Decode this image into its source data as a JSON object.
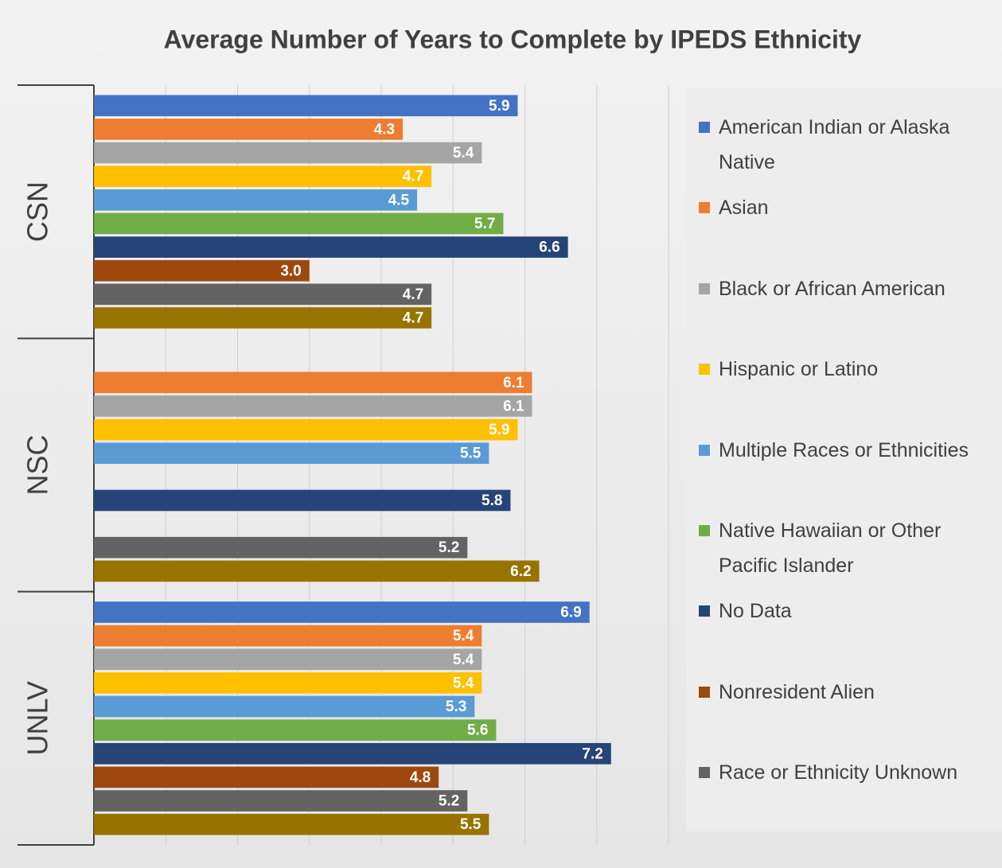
{
  "chart_data": {
    "type": "bar",
    "orientation": "horizontal",
    "title": "Average Number of Years to Complete by IPEDS Ethnicity",
    "categories": [
      "CSN",
      "NSC",
      "UNLV"
    ],
    "series": [
      {
        "name": "American Indian or Alaska Native",
        "color": "#4472c4",
        "values": [
          5.9,
          null,
          6.9
        ]
      },
      {
        "name": "Asian",
        "color": "#ed7d31",
        "values": [
          4.3,
          6.1,
          5.4
        ]
      },
      {
        "name": "Black or African American",
        "color": "#a5a5a5",
        "values": [
          5.4,
          6.1,
          5.4
        ]
      },
      {
        "name": "Hispanic or Latino",
        "color": "#ffc000",
        "values": [
          4.7,
          5.9,
          5.4
        ]
      },
      {
        "name": "Multiple Races or Ethnicities",
        "color": "#5b9bd5",
        "values": [
          4.5,
          5.5,
          5.3
        ]
      },
      {
        "name": "Native Hawaiian or Other Pacific Islander",
        "color": "#70ad47",
        "values": [
          5.7,
          null,
          5.6
        ]
      },
      {
        "name": "No Data",
        "color": "#264478",
        "values": [
          6.6,
          5.8,
          7.2
        ]
      },
      {
        "name": "Nonresident Alien",
        "color": "#9e480e",
        "values": [
          3.0,
          null,
          4.8
        ],
        "value_labels": [
          "3.0",
          null,
          "4.8"
        ]
      },
      {
        "name": "Race or Ethnicity Unknown",
        "color": "#636363",
        "values": [
          4.7,
          5.2,
          5.2
        ]
      },
      {
        "name": null,
        "color": "#997300",
        "values": [
          4.7,
          6.2,
          5.5
        ]
      }
    ],
    "xlim": [
      0,
      8
    ],
    "xticks": [
      0,
      1,
      2,
      3,
      4,
      5,
      6,
      7,
      8
    ],
    "grid": true,
    "legend": "right"
  }
}
